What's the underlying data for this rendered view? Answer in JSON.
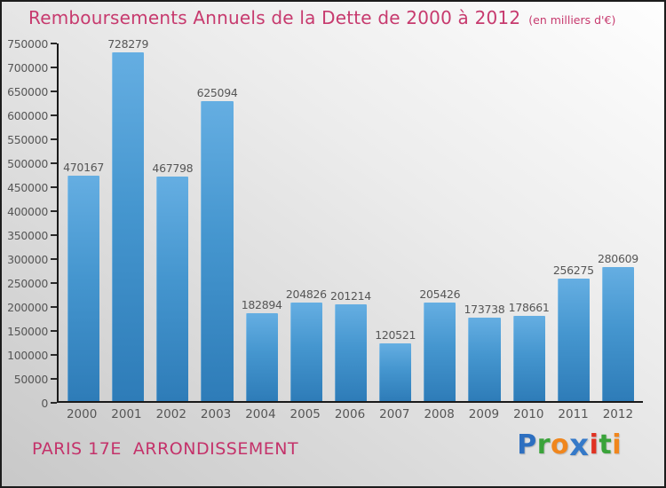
{
  "header": {
    "title": "Remboursements Annuels de la Dette de 2000 à 2012",
    "subtitle": "(en milliers d'€)"
  },
  "chart_data": {
    "type": "bar",
    "title": "Remboursements Annuels de la Dette de 2000 à 2012",
    "subtitle": "(en milliers d'€)",
    "categories": [
      "2000",
      "2001",
      "2002",
      "2003",
      "2004",
      "2005",
      "2006",
      "2007",
      "2008",
      "2009",
      "2010",
      "2011",
      "2012"
    ],
    "values": [
      470167,
      728279,
      467798,
      625094,
      182894,
      204826,
      201214,
      120521,
      205426,
      173738,
      178661,
      256275,
      280609
    ],
    "xlabel": "",
    "ylabel": "",
    "ylim": [
      0,
      750000
    ],
    "ytick_step": 50000,
    "grid": false,
    "legend": "none",
    "bar_color_top": "#65aee2",
    "bar_color_bottom": "#2e7cb8"
  },
  "footer": {
    "location": "PARIS 17E  ARRONDISSEMENT",
    "logo_text": "Proxiti",
    "logo_letters": [
      {
        "ch": "P",
        "color": "#2d6fc0",
        "big": false
      },
      {
        "ch": "r",
        "color": "#3aa33a",
        "big": false
      },
      {
        "ch": "o",
        "color": "#f0861d",
        "big": false
      },
      {
        "ch": "x",
        "color": "#3579c8",
        "big": true
      },
      {
        "ch": "i",
        "color": "#e03222, ",
        "big": false
      },
      {
        "ch": "t",
        "color": "#3aa33a",
        "big": false
      },
      {
        "ch": "i",
        "color": "#f0861d",
        "big": false
      }
    ]
  },
  "colors": {
    "title_pink": "#c73a6e",
    "footer_pink": "#c4326a",
    "text_gray": "#565656",
    "axis_black": "#1a1a1a"
  }
}
